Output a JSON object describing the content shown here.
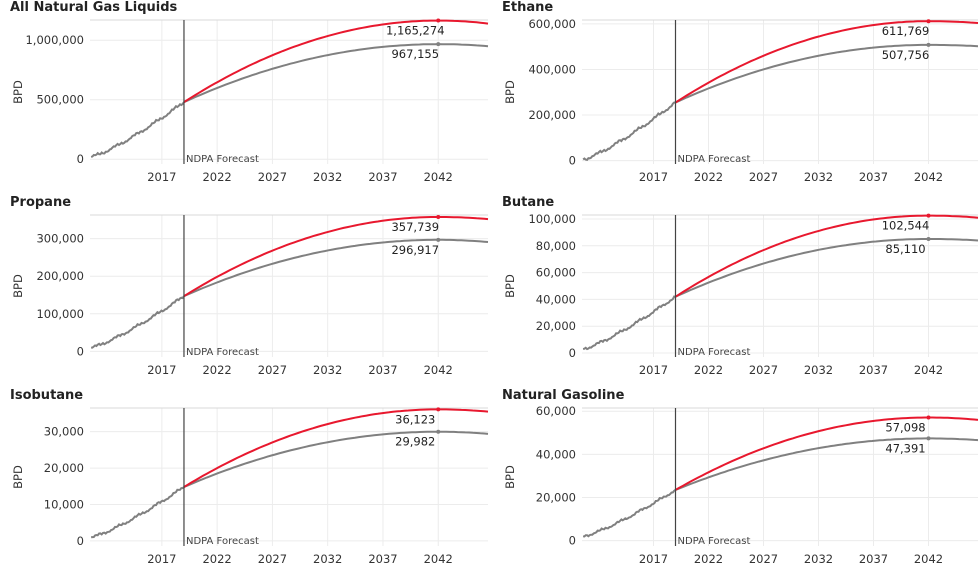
{
  "colors": {
    "baseline": "#808080",
    "forecast": "#e8182e",
    "grid": "#ececec",
    "axis": "#444444"
  },
  "chart_data": [
    {
      "type": "line",
      "title": "All Natural Gas Liquids",
      "ylabel": "BPD",
      "yticks": [
        "0",
        "500,000",
        "1,000,000"
      ],
      "ytick_values": [
        0,
        500000,
        1000000
      ],
      "ylim": [
        -40000,
        1170000
      ],
      "xticks": [
        "2017",
        "2022",
        "2027",
        "2032",
        "2037",
        "2042"
      ],
      "xtick_values": [
        2017,
        2022,
        2027,
        2032,
        2037,
        2042
      ],
      "xlim": [
        2010.5,
        2046.5
      ],
      "forecast_start": 2019,
      "forecast_label": "NDPA Forecast",
      "history": {
        "start_year": 2010.6,
        "start_value": 20000,
        "end_value": 480000
      },
      "series": [
        {
          "name": "",
          "style": "forecast",
          "peak_year": 2042,
          "peak_value": 1165274,
          "end_value": 1140000,
          "callout": "1,165,274"
        },
        {
          "name": "",
          "style": "baseline",
          "peak_year": 2042,
          "peak_value": 967155,
          "end_value": 950000,
          "callout": "967,155"
        }
      ]
    },
    {
      "type": "line",
      "title": "Ethane",
      "ylabel": "BPD",
      "yticks": [
        "0",
        "200,000",
        "400,000",
        "600,000"
      ],
      "ytick_values": [
        0,
        200000,
        400000,
        600000
      ],
      "ylim": [
        -15000,
        617000
      ],
      "xticks": [
        "2017",
        "2022",
        "2027",
        "2032",
        "2037",
        "2042"
      ],
      "xtick_values": [
        2017,
        2022,
        2027,
        2032,
        2037,
        2042
      ],
      "xlim": [
        2010.5,
        2046.5
      ],
      "forecast_start": 2019,
      "forecast_label": "NDPA Forecast",
      "history": {
        "start_year": 2010.6,
        "start_value": 5000,
        "end_value": 255000
      },
      "series": [
        {
          "name": "",
          "style": "forecast",
          "peak_year": 2042,
          "peak_value": 611769,
          "end_value": 604000,
          "callout": "611,769"
        },
        {
          "name": "",
          "style": "baseline",
          "peak_year": 2042,
          "peak_value": 507756,
          "end_value": 502000,
          "callout": "507,756"
        }
      ]
    },
    {
      "type": "line",
      "title": "Propane",
      "ylabel": "BPD",
      "yticks": [
        "0",
        "100,000",
        "200,000",
        "300,000"
      ],
      "ytick_values": [
        0,
        100000,
        200000,
        300000
      ],
      "ylim": [
        -15000,
        363000
      ],
      "xticks": [
        "2017",
        "2022",
        "2027",
        "2032",
        "2037",
        "2042"
      ],
      "xtick_values": [
        2017,
        2022,
        2027,
        2032,
        2037,
        2042
      ],
      "xlim": [
        2010.5,
        2046.5
      ],
      "forecast_start": 2019,
      "forecast_label": "NDPA Forecast",
      "history": {
        "start_year": 2010.6,
        "start_value": 10000,
        "end_value": 147000
      },
      "series": [
        {
          "name": "",
          "style": "forecast",
          "peak_year": 2042,
          "peak_value": 357739,
          "end_value": 352000,
          "callout": "357,739"
        },
        {
          "name": "",
          "style": "baseline",
          "peak_year": 2042,
          "peak_value": 296917,
          "end_value": 291000,
          "callout": "296,917"
        }
      ]
    },
    {
      "type": "line",
      "title": "Butane",
      "ylabel": "BPD",
      "yticks": [
        "0",
        "20,000",
        "40,000",
        "60,000",
        "80,000",
        "100,000"
      ],
      "ytick_values": [
        0,
        20000,
        40000,
        60000,
        80000,
        100000
      ],
      "ylim": [
        -3000,
        103000
      ],
      "xticks": [
        "2017",
        "2022",
        "2027",
        "2032",
        "2037",
        "2042"
      ],
      "xtick_values": [
        2017,
        2022,
        2027,
        2032,
        2037,
        2042
      ],
      "xlim": [
        2010.5,
        2046.5
      ],
      "forecast_start": 2019,
      "forecast_label": "NDPA Forecast",
      "history": {
        "start_year": 2010.6,
        "start_value": 3000,
        "end_value": 42000
      },
      "series": [
        {
          "name": "",
          "style": "forecast",
          "peak_year": 2042,
          "peak_value": 102544,
          "end_value": 101000,
          "callout": "102,544"
        },
        {
          "name": "",
          "style": "baseline",
          "peak_year": 2042,
          "peak_value": 85110,
          "end_value": 84000,
          "callout": "85,110"
        }
      ]
    },
    {
      "type": "line",
      "title": "Isobutane",
      "ylabel": "BPD",
      "yticks": [
        "0",
        "10,000",
        "20,000",
        "30,000"
      ],
      "ytick_values": [
        0,
        10000,
        20000,
        30000
      ],
      "ylim": [
        -1400,
        36500
      ],
      "xticks": [
        "2017",
        "2022",
        "2027",
        "2032",
        "2037",
        "2042"
      ],
      "xtick_values": [
        2017,
        2022,
        2027,
        2032,
        2037,
        2042
      ],
      "xlim": [
        2010.5,
        2046.5
      ],
      "forecast_start": 2019,
      "forecast_label": "NDPA Forecast",
      "history": {
        "start_year": 2010.6,
        "start_value": 1000,
        "end_value": 14800
      },
      "series": [
        {
          "name": "",
          "style": "forecast",
          "peak_year": 2042,
          "peak_value": 36123,
          "end_value": 35500,
          "callout": "36,123"
        },
        {
          "name": "",
          "style": "baseline",
          "peak_year": 2042,
          "peak_value": 29982,
          "end_value": 29400,
          "callout": "29,982"
        }
      ]
    },
    {
      "type": "line",
      "title": "Natural Gasoline",
      "ylabel": "BPD",
      "yticks": [
        "0",
        "20,000",
        "40,000",
        "60,000"
      ],
      "ytick_values": [
        0,
        20000,
        40000,
        60000
      ],
      "ylim": [
        -2500,
        61500
      ],
      "xticks": [
        "2017",
        "2022",
        "2027",
        "2032",
        "2037",
        "2042"
      ],
      "xtick_values": [
        2017,
        2022,
        2027,
        2032,
        2037,
        2042
      ],
      "xlim": [
        2010.5,
        2046.5
      ],
      "forecast_start": 2019,
      "forecast_label": "NDPA Forecast",
      "history": {
        "start_year": 2010.6,
        "start_value": 2000,
        "end_value": 23500
      },
      "series": [
        {
          "name": "",
          "style": "forecast",
          "peak_year": 2042,
          "peak_value": 57098,
          "end_value": 56000,
          "callout": "57,098"
        },
        {
          "name": "",
          "style": "baseline",
          "peak_year": 2042,
          "peak_value": 47391,
          "end_value": 46600,
          "callout": "47,391"
        }
      ]
    }
  ]
}
